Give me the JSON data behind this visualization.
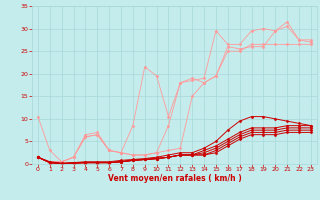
{
  "xlabel": "Vent moyen/en rafales ( km/h )",
  "xlim": [
    -0.5,
    23.5
  ],
  "ylim": [
    0,
    35
  ],
  "yticks": [
    0,
    5,
    10,
    15,
    20,
    25,
    30,
    35
  ],
  "xticks": [
    0,
    1,
    2,
    3,
    4,
    5,
    6,
    7,
    8,
    9,
    10,
    11,
    12,
    13,
    14,
    15,
    16,
    17,
    18,
    19,
    20,
    21,
    22,
    23
  ],
  "bg_color": "#c5ecec",
  "grid_color": "#a8d8d8",
  "line_color_dark": "#cc0000",
  "line_color_light": "#ff9999",
  "series_light1": [
    [
      0,
      10.5
    ],
    [
      1,
      3.0
    ],
    [
      2,
      0.5
    ],
    [
      3,
      1.5
    ],
    [
      4,
      6.5
    ],
    [
      5,
      7.0
    ],
    [
      6,
      3.0
    ],
    [
      7,
      2.5
    ],
    [
      8,
      8.5
    ],
    [
      9,
      21.5
    ],
    [
      10,
      19.5
    ],
    [
      11,
      10.5
    ],
    [
      12,
      18.0
    ],
    [
      13,
      18.5
    ],
    [
      14,
      19.0
    ],
    [
      15,
      29.5
    ],
    [
      16,
      26.5
    ],
    [
      17,
      26.5
    ],
    [
      18,
      29.5
    ],
    [
      19,
      30.0
    ],
    [
      20,
      29.5
    ],
    [
      21,
      31.5
    ],
    [
      22,
      27.5
    ],
    [
      23,
      27.5
    ]
  ],
  "series_light2": [
    [
      0,
      1.5
    ],
    [
      1,
      0.5
    ],
    [
      2,
      0.5
    ],
    [
      3,
      1.5
    ],
    [
      4,
      6.0
    ],
    [
      5,
      6.5
    ],
    [
      6,
      3.0
    ],
    [
      7,
      2.5
    ],
    [
      8,
      2.0
    ],
    [
      9,
      2.0
    ],
    [
      10,
      2.5
    ],
    [
      11,
      8.5
    ],
    [
      12,
      18.0
    ],
    [
      13,
      19.0
    ],
    [
      14,
      18.0
    ],
    [
      15,
      19.5
    ],
    [
      16,
      26.0
    ],
    [
      17,
      25.5
    ],
    [
      18,
      26.0
    ],
    [
      19,
      26.0
    ],
    [
      20,
      29.5
    ],
    [
      21,
      30.5
    ],
    [
      22,
      27.5
    ],
    [
      23,
      27.0
    ]
  ],
  "series_light3": [
    [
      0,
      1.5
    ],
    [
      1,
      0.5
    ],
    [
      2,
      0.5
    ],
    [
      3,
      1.5
    ],
    [
      4,
      6.0
    ],
    [
      5,
      6.5
    ],
    [
      6,
      3.0
    ],
    [
      7,
      2.5
    ],
    [
      8,
      2.0
    ],
    [
      9,
      2.0
    ],
    [
      10,
      2.5
    ],
    [
      11,
      3.0
    ],
    [
      12,
      3.5
    ],
    [
      13,
      15.0
    ],
    [
      14,
      18.0
    ],
    [
      15,
      19.5
    ],
    [
      16,
      25.0
    ],
    [
      17,
      25.0
    ],
    [
      18,
      26.5
    ],
    [
      19,
      26.5
    ],
    [
      20,
      26.5
    ],
    [
      21,
      26.5
    ],
    [
      22,
      26.5
    ],
    [
      23,
      26.5
    ]
  ],
  "series_dark1": [
    [
      0,
      1.5
    ],
    [
      1,
      0.5
    ],
    [
      2,
      0.2
    ],
    [
      3,
      0.3
    ],
    [
      4,
      0.5
    ],
    [
      5,
      0.5
    ],
    [
      6,
      0.5
    ],
    [
      7,
      0.8
    ],
    [
      8,
      1.0
    ],
    [
      9,
      1.2
    ],
    [
      10,
      1.5
    ],
    [
      11,
      2.0
    ],
    [
      12,
      2.5
    ],
    [
      13,
      2.5
    ],
    [
      14,
      3.5
    ],
    [
      15,
      5.0
    ],
    [
      16,
      7.5
    ],
    [
      17,
      9.5
    ],
    [
      18,
      10.5
    ],
    [
      19,
      10.5
    ],
    [
      20,
      10.0
    ],
    [
      21,
      9.5
    ],
    [
      22,
      9.0
    ],
    [
      23,
      8.5
    ]
  ],
  "series_dark2": [
    [
      0,
      1.5
    ],
    [
      1,
      0.3
    ],
    [
      2,
      0.1
    ],
    [
      3,
      0.2
    ],
    [
      4,
      0.3
    ],
    [
      5,
      0.3
    ],
    [
      6,
      0.3
    ],
    [
      7,
      0.5
    ],
    [
      8,
      0.8
    ],
    [
      9,
      1.0
    ],
    [
      10,
      1.2
    ],
    [
      11,
      1.5
    ],
    [
      12,
      2.0
    ],
    [
      13,
      2.0
    ],
    [
      14,
      3.0
    ],
    [
      15,
      4.0
    ],
    [
      16,
      5.5
    ],
    [
      17,
      7.0
    ],
    [
      18,
      8.0
    ],
    [
      19,
      8.0
    ],
    [
      20,
      8.0
    ],
    [
      21,
      8.5
    ],
    [
      22,
      8.5
    ],
    [
      23,
      8.5
    ]
  ],
  "series_dark3": [
    [
      0,
      1.5
    ],
    [
      1,
      0.3
    ],
    [
      2,
      0.1
    ],
    [
      3,
      0.2
    ],
    [
      4,
      0.3
    ],
    [
      5,
      0.3
    ],
    [
      6,
      0.3
    ],
    [
      7,
      0.5
    ],
    [
      8,
      0.8
    ],
    [
      9,
      1.0
    ],
    [
      10,
      1.2
    ],
    [
      11,
      1.5
    ],
    [
      12,
      2.0
    ],
    [
      13,
      2.0
    ],
    [
      14,
      2.5
    ],
    [
      15,
      3.5
    ],
    [
      16,
      5.0
    ],
    [
      17,
      6.5
    ],
    [
      18,
      7.5
    ],
    [
      19,
      7.5
    ],
    [
      20,
      7.5
    ],
    [
      21,
      8.0
    ],
    [
      22,
      8.0
    ],
    [
      23,
      8.0
    ]
  ],
  "series_dark4": [
    [
      0,
      1.5
    ],
    [
      1,
      0.3
    ],
    [
      2,
      0.1
    ],
    [
      3,
      0.2
    ],
    [
      4,
      0.3
    ],
    [
      5,
      0.3
    ],
    [
      6,
      0.3
    ],
    [
      7,
      0.5
    ],
    [
      8,
      0.8
    ],
    [
      9,
      1.0
    ],
    [
      10,
      1.2
    ],
    [
      11,
      1.5
    ],
    [
      12,
      2.0
    ],
    [
      13,
      2.0
    ],
    [
      14,
      2.0
    ],
    [
      15,
      3.0
    ],
    [
      16,
      4.5
    ],
    [
      17,
      6.0
    ],
    [
      18,
      7.0
    ],
    [
      19,
      7.0
    ],
    [
      20,
      7.0
    ],
    [
      21,
      7.5
    ],
    [
      22,
      7.5
    ],
    [
      23,
      7.5
    ]
  ],
  "series_dark5": [
    [
      0,
      1.5
    ],
    [
      1,
      0.3
    ],
    [
      2,
      0.1
    ],
    [
      3,
      0.2
    ],
    [
      4,
      0.3
    ],
    [
      5,
      0.3
    ],
    [
      6,
      0.3
    ],
    [
      7,
      0.5
    ],
    [
      8,
      0.8
    ],
    [
      9,
      1.0
    ],
    [
      10,
      1.2
    ],
    [
      11,
      1.5
    ],
    [
      12,
      2.0
    ],
    [
      13,
      2.0
    ],
    [
      14,
      2.0
    ],
    [
      15,
      2.5
    ],
    [
      16,
      4.0
    ],
    [
      17,
      5.5
    ],
    [
      18,
      6.5
    ],
    [
      19,
      6.5
    ],
    [
      20,
      6.5
    ],
    [
      21,
      7.0
    ],
    [
      22,
      7.0
    ],
    [
      23,
      7.0
    ]
  ]
}
